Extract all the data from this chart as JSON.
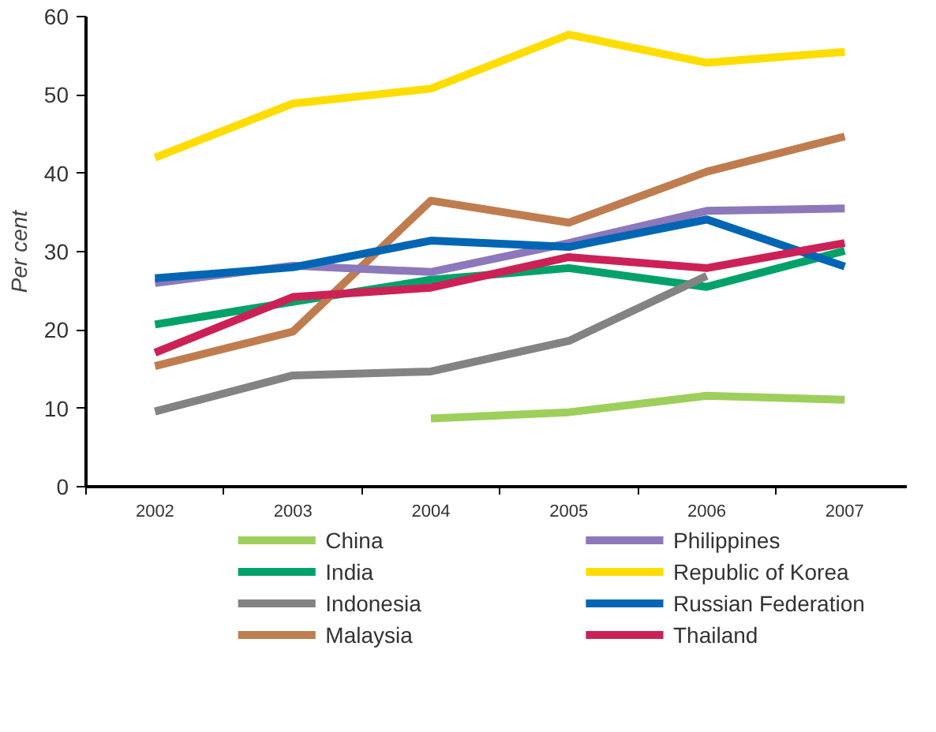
{
  "chart_data": {
    "type": "line",
    "ylabel": "Per cent",
    "categories": [
      "2002",
      "2003",
      "2004",
      "2005",
      "2006",
      "2007"
    ],
    "ylim": [
      0,
      60
    ],
    "yticks": [
      0,
      10,
      20,
      30,
      40,
      50,
      60
    ],
    "grid": false,
    "legend": "bottom",
    "marker": "none",
    "line_style": "solid",
    "series": [
      {
        "name": "China",
        "color": "#9ecf5c",
        "values": [
          null,
          null,
          8.7,
          9.5,
          11.6,
          11.1
        ]
      },
      {
        "name": "India",
        "color": "#00a26a",
        "values": [
          20.7,
          23.6,
          26.4,
          27.9,
          25.5,
          30.1
        ]
      },
      {
        "name": "Indonesia",
        "color": "#838383",
        "values": [
          9.6,
          14.2,
          14.7,
          18.6,
          26.9,
          null
        ]
      },
      {
        "name": "Malaysia",
        "color": "#bf7d4f",
        "values": [
          15.4,
          19.8,
          36.5,
          33.7,
          40.2,
          44.7
        ]
      },
      {
        "name": "Philippines",
        "color": "#8c78bb",
        "values": [
          26.0,
          28.2,
          27.4,
          31.1,
          35.2,
          35.5
        ]
      },
      {
        "name": "Republic of Korea",
        "color": "#ffdd00",
        "values": [
          42.0,
          48.9,
          50.8,
          57.7,
          54.1,
          55.5
        ]
      },
      {
        "name": "Russian Federation",
        "color": "#0066b3",
        "values": [
          26.6,
          28.0,
          31.4,
          30.6,
          34.1,
          28.1
        ]
      },
      {
        "name": "Thailand",
        "color": "#cc2157",
        "values": [
          17.1,
          24.2,
          25.4,
          29.3,
          27.9,
          31.1
        ]
      }
    ]
  }
}
